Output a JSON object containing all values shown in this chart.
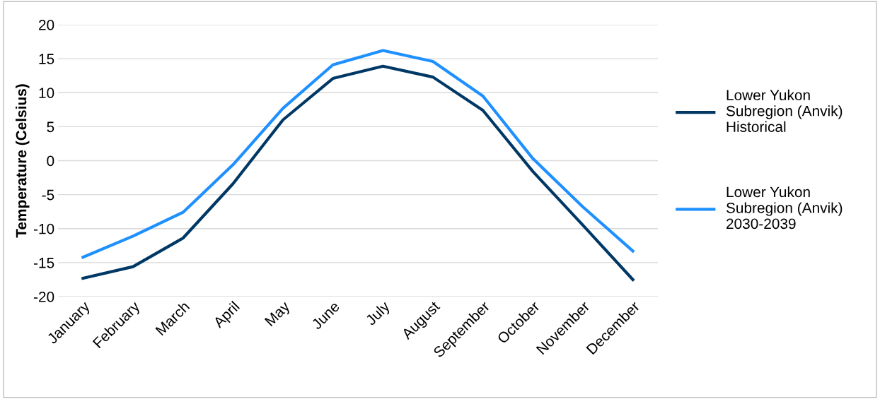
{
  "chart_data": {
    "type": "line",
    "ylabel": "Temperature (Celsius)",
    "categories": [
      "January",
      "February",
      "March",
      "April",
      "May",
      "June",
      "July",
      "August",
      "September",
      "October",
      "November",
      "December"
    ],
    "series": [
      {
        "name": "Lower Yukon Subregion (Anvik) Historical",
        "color": "#003865",
        "values": [
          -17.3,
          -15.6,
          -11.4,
          -3.4,
          6.0,
          12.1,
          13.9,
          12.3,
          7.4,
          -1.6,
          -9.5,
          -17.5
        ]
      },
      {
        "name": "Lower Yukon Subregion (Anvik) 2030-2039",
        "color": "#1e90ff",
        "values": [
          -14.2,
          -11.1,
          -7.6,
          -0.6,
          7.7,
          14.1,
          16.2,
          14.6,
          9.5,
          0.3,
          -6.8,
          -13.3
        ]
      }
    ],
    "ylim": [
      -20,
      20
    ],
    "yticks": [
      -20,
      -15,
      -10,
      -5,
      0,
      5,
      10,
      15,
      20
    ],
    "grid": "y",
    "legend": "right",
    "marker": "none",
    "line_style": "solid"
  }
}
